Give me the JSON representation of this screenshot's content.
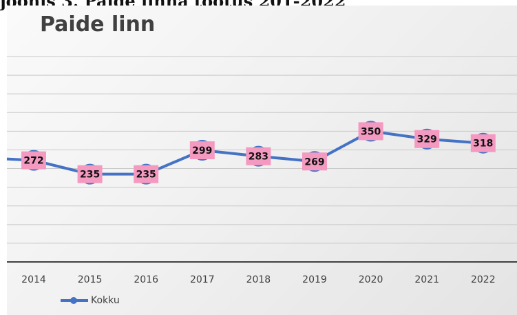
{
  "caption": "joonis 3. Paide linna tootus 201-2022",
  "chart_data": {
    "type": "line",
    "title": "Paide linn",
    "categories": [
      "2014",
      "2015",
      "2016",
      "2017",
      "2018",
      "2019",
      "2020",
      "2021",
      "2022"
    ],
    "series": [
      {
        "name": "Kokku",
        "values": [
          272,
          235,
          235,
          299,
          283,
          269,
          350,
          329,
          318
        ]
      }
    ],
    "ylim": [
      0,
      550
    ],
    "grid": true,
    "legend_position": "bottom-left",
    "data_labels": true,
    "colors": {
      "line": "#4472c4",
      "label_bg": "#f49ac1",
      "axis": "#404040",
      "grid": "#c8c8c8"
    }
  }
}
